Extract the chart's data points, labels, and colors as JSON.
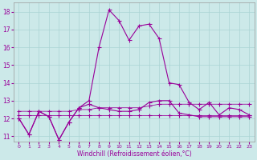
{
  "xlabel": "Windchill (Refroidissement éolien,°C)",
  "background_color": "#cce9e9",
  "grid_color": "#aad4d4",
  "line_color": "#990099",
  "x_hours": [
    0,
    1,
    2,
    3,
    4,
    5,
    6,
    7,
    8,
    9,
    10,
    11,
    12,
    13,
    14,
    15,
    16,
    17,
    18,
    19,
    20,
    21,
    22,
    23
  ],
  "series1": [
    12.0,
    11.1,
    12.4,
    12.1,
    10.8,
    11.8,
    12.6,
    13.0,
    16.0,
    18.1,
    17.5,
    16.4,
    17.2,
    17.3,
    16.5,
    14.0,
    13.9,
    12.9,
    12.5,
    12.9,
    12.2,
    12.6,
    12.5,
    12.2
  ],
  "series2": [
    12.0,
    11.1,
    12.4,
    12.1,
    10.8,
    11.8,
    12.6,
    12.8,
    12.6,
    12.5,
    12.4,
    12.4,
    12.5,
    12.9,
    13.0,
    13.0,
    12.3,
    12.2,
    12.1,
    12.1,
    12.1,
    12.1,
    12.1,
    12.1
  ],
  "series3": [
    12.4,
    12.4,
    12.4,
    12.4,
    12.4,
    12.4,
    12.5,
    12.5,
    12.6,
    12.6,
    12.6,
    12.6,
    12.6,
    12.7,
    12.8,
    12.8,
    12.8,
    12.8,
    12.8,
    12.8,
    12.8,
    12.8,
    12.8,
    12.8
  ],
  "series4": [
    12.2,
    12.2,
    12.2,
    12.2,
    12.2,
    12.2,
    12.2,
    12.2,
    12.2,
    12.2,
    12.2,
    12.2,
    12.2,
    12.2,
    12.2,
    12.2,
    12.2,
    12.2,
    12.2,
    12.2,
    12.2,
    12.2,
    12.2,
    12.2
  ],
  "ylim": [
    10.7,
    18.5
  ],
  "yticks": [
    11,
    12,
    13,
    14,
    15,
    16,
    17,
    18
  ],
  "xticks": [
    0,
    1,
    2,
    3,
    4,
    5,
    6,
    7,
    8,
    9,
    10,
    11,
    12,
    13,
    14,
    15,
    16,
    17,
    18,
    19,
    20,
    21,
    22,
    23
  ],
  "marker_size": 2.0,
  "line_width": 0.8
}
